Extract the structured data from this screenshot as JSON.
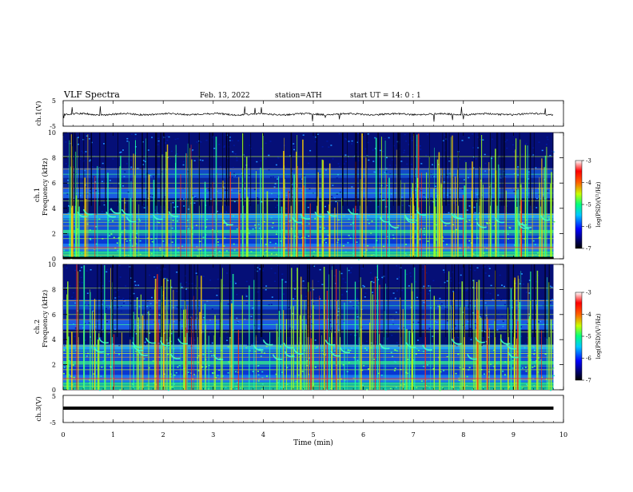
{
  "header": {
    "title": "VLF  Spectra",
    "date": "Feb. 13, 2022",
    "station": "station=ATH",
    "start": "start  UT  =   14: 0  : 1"
  },
  "chart_data": [
    {
      "type": "line",
      "name": "ch1-waveform",
      "ylabel": "ch.1(V)",
      "ylim": [
        -5,
        5
      ],
      "yticks": [
        "5",
        "-5"
      ]
    },
    {
      "type": "heatmap",
      "name": "ch1-spectrogram",
      "ylabel": "ch.1\nFrequency  (kHz)",
      "ylim": [
        0,
        10
      ],
      "yticks": [
        "0",
        "2",
        "4",
        "6",
        "8",
        "10"
      ],
      "colorbar": {
        "label": "log(PSD)(V²/Hz)",
        "range": [
          -7,
          -3
        ],
        "ticks": [
          "-3",
          "-4",
          "-5",
          "-6",
          "-7"
        ]
      }
    },
    {
      "type": "heatmap",
      "name": "ch2-spectrogram",
      "ylabel": "ch.2\nFrequency  (kHz)",
      "ylim": [
        0,
        10
      ],
      "yticks": [
        "0",
        "2",
        "4",
        "6",
        "8",
        "10"
      ],
      "colorbar": {
        "label": "log(PSD)(V²/Hz)",
        "range": [
          -7,
          -3
        ],
        "ticks": [
          "-3",
          "-4",
          "-5",
          "-6",
          "-7"
        ]
      }
    },
    {
      "type": "line",
      "name": "ch3-waveform",
      "ylabel": "ch.3(V)",
      "ylim": [
        -5,
        5
      ],
      "yticks": [
        "5",
        "-5"
      ]
    }
  ],
  "xaxis": {
    "label": "Time  (min)",
    "range": [
      0,
      10
    ],
    "ticks": [
      "0",
      "1",
      "2",
      "3",
      "4",
      "5",
      "6",
      "7",
      "8",
      "9",
      "10"
    ],
    "data_end": 9.8
  },
  "colors": {
    "spectrogram_background": "#050a6e",
    "frame": "#000000"
  }
}
